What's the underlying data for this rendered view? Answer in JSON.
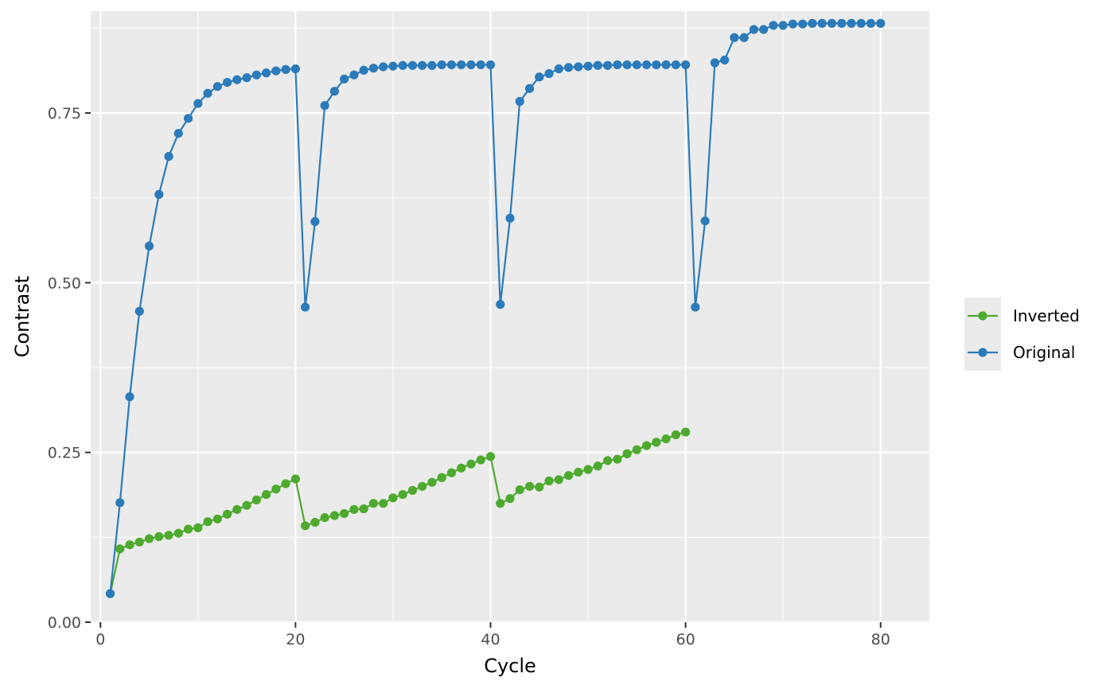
{
  "chart_data": {
    "type": "line",
    "xlabel": "Cycle",
    "ylabel": "Contrast",
    "xlim": [
      -1,
      85
    ],
    "ylim": [
      0,
      0.9
    ],
    "x_ticks": [
      0,
      20,
      40,
      60,
      80
    ],
    "x_tick_labels": [
      "0",
      "20",
      "40",
      "60",
      "80"
    ],
    "y_ticks": [
      0,
      0.25,
      0.5,
      0.75
    ],
    "y_tick_labels": [
      "0.00",
      "0.25",
      "0.50",
      "0.75"
    ],
    "grid": true,
    "legend_position": "right",
    "series": [
      {
        "name": "Inverted",
        "color": "#4DAA2E",
        "x": [
          1,
          2,
          3,
          4,
          5,
          6,
          7,
          8,
          9,
          10,
          11,
          12,
          13,
          14,
          15,
          16,
          17,
          18,
          19,
          20,
          21,
          22,
          23,
          24,
          25,
          26,
          27,
          28,
          29,
          30,
          31,
          32,
          33,
          34,
          35,
          36,
          37,
          38,
          39,
          40,
          41,
          42,
          43,
          44,
          45,
          46,
          47,
          48,
          49,
          50,
          51,
          52,
          53,
          54,
          55,
          56,
          57,
          58,
          59,
          60
        ],
        "values": [
          0.042,
          0.108,
          0.114,
          0.118,
          0.123,
          0.126,
          0.128,
          0.131,
          0.137,
          0.139,
          0.148,
          0.152,
          0.159,
          0.166,
          0.172,
          0.18,
          0.188,
          0.196,
          0.204,
          0.211,
          0.142,
          0.147,
          0.154,
          0.157,
          0.16,
          0.166,
          0.167,
          0.175,
          0.175,
          0.183,
          0.188,
          0.194,
          0.2,
          0.206,
          0.213,
          0.22,
          0.227,
          0.233,
          0.239,
          0.244,
          0.175,
          0.182,
          0.195,
          0.2,
          0.199,
          0.208,
          0.21,
          0.216,
          0.221,
          0.225,
          0.23,
          0.238,
          0.24,
          0.248,
          0.254,
          0.26,
          0.265,
          0.27,
          0.276,
          0.28
        ]
      },
      {
        "name": "Original",
        "color": "#2B7BBA",
        "x": [
          1,
          2,
          3,
          4,
          5,
          6,
          7,
          8,
          9,
          10,
          11,
          12,
          13,
          14,
          15,
          16,
          17,
          18,
          19,
          20,
          21,
          22,
          23,
          24,
          25,
          26,
          27,
          28,
          29,
          30,
          31,
          32,
          33,
          34,
          35,
          36,
          37,
          38,
          39,
          40,
          41,
          42,
          43,
          44,
          45,
          46,
          47,
          48,
          49,
          50,
          51,
          52,
          53,
          54,
          55,
          56,
          57,
          58,
          59,
          60,
          61,
          62,
          63,
          64,
          65,
          66,
          67,
          68,
          69,
          70,
          71,
          72,
          73,
          74,
          75,
          76,
          77,
          78,
          79,
          80
        ],
        "values": [
          0.042,
          0.176,
          0.332,
          0.458,
          0.554,
          0.63,
          0.686,
          0.72,
          0.742,
          0.764,
          0.779,
          0.789,
          0.795,
          0.799,
          0.802,
          0.806,
          0.809,
          0.812,
          0.814,
          0.815,
          0.464,
          0.59,
          0.761,
          0.782,
          0.8,
          0.806,
          0.813,
          0.816,
          0.818,
          0.819,
          0.82,
          0.82,
          0.82,
          0.82,
          0.821,
          0.821,
          0.821,
          0.821,
          0.821,
          0.821,
          0.468,
          0.595,
          0.767,
          0.786,
          0.803,
          0.808,
          0.815,
          0.817,
          0.818,
          0.819,
          0.82,
          0.82,
          0.821,
          0.821,
          0.821,
          0.821,
          0.821,
          0.821,
          0.821,
          0.821,
          0.464,
          0.591,
          0.824,
          0.828,
          0.861,
          0.861,
          0.873,
          0.873,
          0.879,
          0.879,
          0.881,
          0.881,
          0.882,
          0.882,
          0.882,
          0.882,
          0.882,
          0.882,
          0.882,
          0.882
        ]
      }
    ]
  }
}
